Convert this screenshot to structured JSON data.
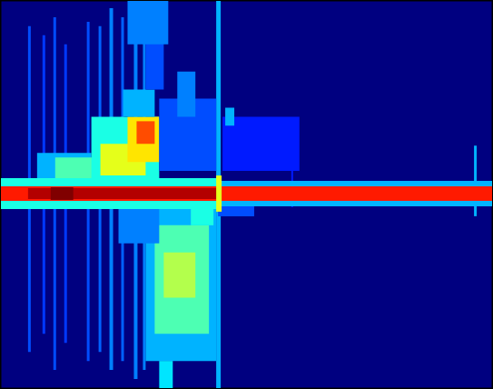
{
  "chart_data": {
    "type": "spectrogram",
    "xlim": [
      0,
      543
    ],
    "ylim": [
      0,
      428
    ],
    "tick_labels": false,
    "grid": false,
    "color_range": [
      0,
      10
    ],
    "cells": [
      [
        30,
        40,
        33,
        400,
        2
      ],
      [
        46,
        60,
        49,
        390,
        1.8
      ],
      [
        58,
        20,
        61,
        410,
        2
      ],
      [
        70,
        50,
        73,
        380,
        1.8
      ],
      [
        95,
        30,
        98,
        405,
        2
      ],
      [
        108,
        40,
        111,
        400,
        2.2
      ],
      [
        120,
        20,
        124,
        420,
        2.5
      ],
      [
        133,
        30,
        136,
        410,
        2.2
      ],
      [
        147,
        10,
        151,
        428,
        2.5
      ],
      [
        157,
        20,
        160,
        420,
        2.5
      ],
      [
        238,
        0,
        243,
        428,
        3
      ],
      [
        523,
        190,
        526,
        268,
        3
      ],
      [
        321,
        200,
        323,
        245,
        1.5
      ],
      [
        0,
        220,
        30,
        230,
        3.5
      ],
      [
        40,
        222,
        100,
        260,
        3
      ],
      [
        60,
        230,
        110,
        255,
        4.5
      ],
      [
        100,
        225,
        175,
        300,
        4
      ],
      [
        110,
        235,
        160,
        270,
        6
      ],
      [
        140,
        250,
        175,
        300,
        6.5
      ],
      [
        150,
        270,
        170,
        295,
        8
      ],
      [
        135,
        300,
        170,
        330,
        3
      ],
      [
        160,
        330,
        180,
        400,
        2
      ],
      [
        140,
        380,
        185,
        428,
        2.5
      ],
      [
        175,
        240,
        238,
        320,
        2
      ],
      [
        195,
        300,
        215,
        350,
        2.5
      ],
      [
        245,
        240,
        330,
        300,
        1.5
      ],
      [
        248,
        290,
        258,
        310,
        3
      ],
      [
        160,
        30,
        238,
        200,
        3
      ],
      [
        170,
        60,
        230,
        180,
        4.5
      ],
      [
        180,
        100,
        215,
        150,
        5.5
      ],
      [
        175,
        0,
        190,
        30,
        3.5
      ],
      [
        130,
        160,
        175,
        200,
        2.5
      ],
      [
        210,
        180,
        235,
        205,
        4
      ],
      [
        240,
        190,
        280,
        205,
        2
      ],
      [
        0,
        198,
        240,
        232,
        4
      ],
      [
        240,
        201,
        543,
        229,
        3
      ],
      [
        0,
        207,
        543,
        223,
        8.5
      ],
      [
        30,
        209,
        240,
        221,
        9.5
      ],
      [
        55,
        208,
        80,
        222,
        10
      ],
      [
        238,
        195,
        244,
        235,
        6
      ]
    ]
  }
}
